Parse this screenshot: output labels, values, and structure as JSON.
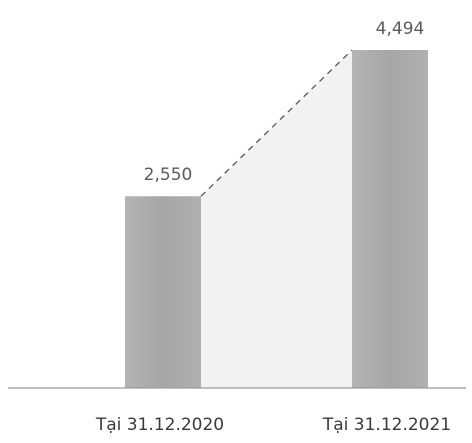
{
  "chart_data": {
    "type": "bar",
    "categories": [
      "Tại 31.12.2020",
      "Tại 31.12.2021"
    ],
    "values": [
      2550,
      4494
    ],
    "data_labels": [
      "2,550",
      "4,494"
    ],
    "title": "",
    "xlabel": "",
    "ylabel": "",
    "ylim": [
      0,
      4494
    ],
    "grid": false,
    "legend": "none",
    "connector": "dashed",
    "colors": {
      "bar": "#a9a9a9",
      "fill_between": "#f2f2f2",
      "connector": "#555555",
      "baseline": "#9a9a9a"
    }
  }
}
